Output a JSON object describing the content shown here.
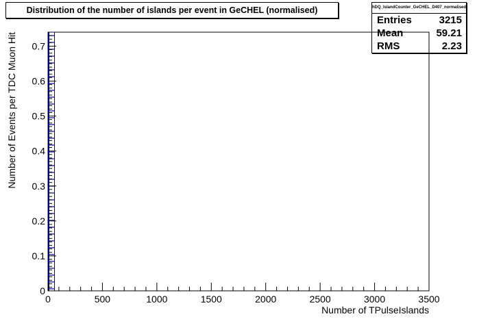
{
  "title": "Distribution of the number of islands per event in GeCHEL (normalised)",
  "stats": {
    "name": "hDQ_IslandCounter_GeCHEL_D407_normalised",
    "rows": [
      {
        "label": "Entries",
        "value": "3215"
      },
      {
        "label": "Mean",
        "value": "59.21"
      },
      {
        "label": "RMS",
        "value": "2.23"
      }
    ]
  },
  "chart_data": {
    "type": "bar",
    "title": "Distribution of the number of islands per event in GeCHEL (normalised)",
    "xlabel": "Number of TPulseIslands",
    "ylabel": "Number of Events per TDC Muon Hit",
    "xlim": [
      0,
      3500
    ],
    "ylim": [
      0,
      0.74
    ],
    "x_ticks": [
      "0",
      "500",
      "1000",
      "1500",
      "2000",
      "2500",
      "3000",
      "3500"
    ],
    "y_ticks": [
      "0",
      "0.1",
      "0.2",
      "0.3",
      "0.4",
      "0.5",
      "0.6",
      "0.7"
    ],
    "x_tick_values": [
      0,
      500,
      1000,
      1500,
      2000,
      2500,
      3000,
      3500
    ],
    "y_tick_values": [
      0,
      0.1,
      0.2,
      0.3,
      0.4,
      0.5,
      0.6,
      0.7
    ],
    "bins": [
      {
        "x0": 0,
        "x1": 60,
        "value": 0.74
      }
    ],
    "color": "#000099"
  }
}
